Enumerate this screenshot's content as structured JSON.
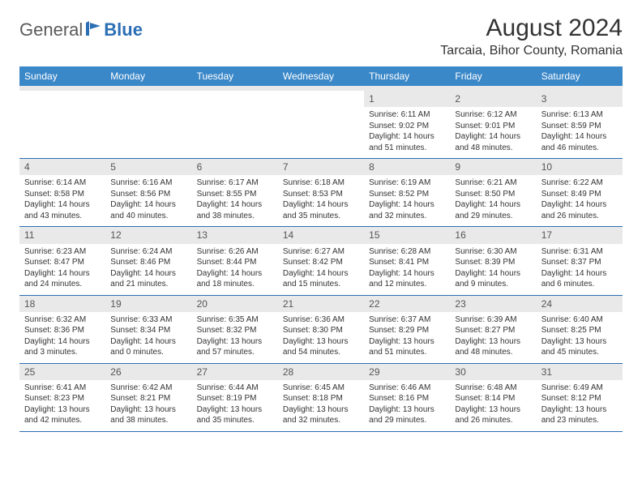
{
  "header": {
    "logo_general": "General",
    "logo_blue": "Blue",
    "month_title": "August 2024",
    "location": "Tarcaia, Bihor County, Romania"
  },
  "colors": {
    "header_bg": "#3b88c9",
    "header_text": "#ffffff",
    "daynum_bg": "#e9e9e9",
    "border": "#2c6fb5",
    "logo_gray": "#5a5a5a",
    "logo_blue": "#2c6fb5",
    "body_text": "#333333",
    "page_bg": "#ffffff"
  },
  "weekdays": [
    "Sunday",
    "Monday",
    "Tuesday",
    "Wednesday",
    "Thursday",
    "Friday",
    "Saturday"
  ],
  "weeks": [
    [
      {
        "day": "",
        "sunrise": "",
        "sunset": "",
        "daylight1": "",
        "daylight2": "",
        "empty": true
      },
      {
        "day": "",
        "sunrise": "",
        "sunset": "",
        "daylight1": "",
        "daylight2": "",
        "empty": true
      },
      {
        "day": "",
        "sunrise": "",
        "sunset": "",
        "daylight1": "",
        "daylight2": "",
        "empty": true
      },
      {
        "day": "",
        "sunrise": "",
        "sunset": "",
        "daylight1": "",
        "daylight2": "",
        "empty": true
      },
      {
        "day": "1",
        "sunrise": "Sunrise: 6:11 AM",
        "sunset": "Sunset: 9:02 PM",
        "daylight1": "Daylight: 14 hours",
        "daylight2": "and 51 minutes."
      },
      {
        "day": "2",
        "sunrise": "Sunrise: 6:12 AM",
        "sunset": "Sunset: 9:01 PM",
        "daylight1": "Daylight: 14 hours",
        "daylight2": "and 48 minutes."
      },
      {
        "day": "3",
        "sunrise": "Sunrise: 6:13 AM",
        "sunset": "Sunset: 8:59 PM",
        "daylight1": "Daylight: 14 hours",
        "daylight2": "and 46 minutes."
      }
    ],
    [
      {
        "day": "4",
        "sunrise": "Sunrise: 6:14 AM",
        "sunset": "Sunset: 8:58 PM",
        "daylight1": "Daylight: 14 hours",
        "daylight2": "and 43 minutes."
      },
      {
        "day": "5",
        "sunrise": "Sunrise: 6:16 AM",
        "sunset": "Sunset: 8:56 PM",
        "daylight1": "Daylight: 14 hours",
        "daylight2": "and 40 minutes."
      },
      {
        "day": "6",
        "sunrise": "Sunrise: 6:17 AM",
        "sunset": "Sunset: 8:55 PM",
        "daylight1": "Daylight: 14 hours",
        "daylight2": "and 38 minutes."
      },
      {
        "day": "7",
        "sunrise": "Sunrise: 6:18 AM",
        "sunset": "Sunset: 8:53 PM",
        "daylight1": "Daylight: 14 hours",
        "daylight2": "and 35 minutes."
      },
      {
        "day": "8",
        "sunrise": "Sunrise: 6:19 AM",
        "sunset": "Sunset: 8:52 PM",
        "daylight1": "Daylight: 14 hours",
        "daylight2": "and 32 minutes."
      },
      {
        "day": "9",
        "sunrise": "Sunrise: 6:21 AM",
        "sunset": "Sunset: 8:50 PM",
        "daylight1": "Daylight: 14 hours",
        "daylight2": "and 29 minutes."
      },
      {
        "day": "10",
        "sunrise": "Sunrise: 6:22 AM",
        "sunset": "Sunset: 8:49 PM",
        "daylight1": "Daylight: 14 hours",
        "daylight2": "and 26 minutes."
      }
    ],
    [
      {
        "day": "11",
        "sunrise": "Sunrise: 6:23 AM",
        "sunset": "Sunset: 8:47 PM",
        "daylight1": "Daylight: 14 hours",
        "daylight2": "and 24 minutes."
      },
      {
        "day": "12",
        "sunrise": "Sunrise: 6:24 AM",
        "sunset": "Sunset: 8:46 PM",
        "daylight1": "Daylight: 14 hours",
        "daylight2": "and 21 minutes."
      },
      {
        "day": "13",
        "sunrise": "Sunrise: 6:26 AM",
        "sunset": "Sunset: 8:44 PM",
        "daylight1": "Daylight: 14 hours",
        "daylight2": "and 18 minutes."
      },
      {
        "day": "14",
        "sunrise": "Sunrise: 6:27 AM",
        "sunset": "Sunset: 8:42 PM",
        "daylight1": "Daylight: 14 hours",
        "daylight2": "and 15 minutes."
      },
      {
        "day": "15",
        "sunrise": "Sunrise: 6:28 AM",
        "sunset": "Sunset: 8:41 PM",
        "daylight1": "Daylight: 14 hours",
        "daylight2": "and 12 minutes."
      },
      {
        "day": "16",
        "sunrise": "Sunrise: 6:30 AM",
        "sunset": "Sunset: 8:39 PM",
        "daylight1": "Daylight: 14 hours",
        "daylight2": "and 9 minutes."
      },
      {
        "day": "17",
        "sunrise": "Sunrise: 6:31 AM",
        "sunset": "Sunset: 8:37 PM",
        "daylight1": "Daylight: 14 hours",
        "daylight2": "and 6 minutes."
      }
    ],
    [
      {
        "day": "18",
        "sunrise": "Sunrise: 6:32 AM",
        "sunset": "Sunset: 8:36 PM",
        "daylight1": "Daylight: 14 hours",
        "daylight2": "and 3 minutes."
      },
      {
        "day": "19",
        "sunrise": "Sunrise: 6:33 AM",
        "sunset": "Sunset: 8:34 PM",
        "daylight1": "Daylight: 14 hours",
        "daylight2": "and 0 minutes."
      },
      {
        "day": "20",
        "sunrise": "Sunrise: 6:35 AM",
        "sunset": "Sunset: 8:32 PM",
        "daylight1": "Daylight: 13 hours",
        "daylight2": "and 57 minutes."
      },
      {
        "day": "21",
        "sunrise": "Sunrise: 6:36 AM",
        "sunset": "Sunset: 8:30 PM",
        "daylight1": "Daylight: 13 hours",
        "daylight2": "and 54 minutes."
      },
      {
        "day": "22",
        "sunrise": "Sunrise: 6:37 AM",
        "sunset": "Sunset: 8:29 PM",
        "daylight1": "Daylight: 13 hours",
        "daylight2": "and 51 minutes."
      },
      {
        "day": "23",
        "sunrise": "Sunrise: 6:39 AM",
        "sunset": "Sunset: 8:27 PM",
        "daylight1": "Daylight: 13 hours",
        "daylight2": "and 48 minutes."
      },
      {
        "day": "24",
        "sunrise": "Sunrise: 6:40 AM",
        "sunset": "Sunset: 8:25 PM",
        "daylight1": "Daylight: 13 hours",
        "daylight2": "and 45 minutes."
      }
    ],
    [
      {
        "day": "25",
        "sunrise": "Sunrise: 6:41 AM",
        "sunset": "Sunset: 8:23 PM",
        "daylight1": "Daylight: 13 hours",
        "daylight2": "and 42 minutes."
      },
      {
        "day": "26",
        "sunrise": "Sunrise: 6:42 AM",
        "sunset": "Sunset: 8:21 PM",
        "daylight1": "Daylight: 13 hours",
        "daylight2": "and 38 minutes."
      },
      {
        "day": "27",
        "sunrise": "Sunrise: 6:44 AM",
        "sunset": "Sunset: 8:19 PM",
        "daylight1": "Daylight: 13 hours",
        "daylight2": "and 35 minutes."
      },
      {
        "day": "28",
        "sunrise": "Sunrise: 6:45 AM",
        "sunset": "Sunset: 8:18 PM",
        "daylight1": "Daylight: 13 hours",
        "daylight2": "and 32 minutes."
      },
      {
        "day": "29",
        "sunrise": "Sunrise: 6:46 AM",
        "sunset": "Sunset: 8:16 PM",
        "daylight1": "Daylight: 13 hours",
        "daylight2": "and 29 minutes."
      },
      {
        "day": "30",
        "sunrise": "Sunrise: 6:48 AM",
        "sunset": "Sunset: 8:14 PM",
        "daylight1": "Daylight: 13 hours",
        "daylight2": "and 26 minutes."
      },
      {
        "day": "31",
        "sunrise": "Sunrise: 6:49 AM",
        "sunset": "Sunset: 8:12 PM",
        "daylight1": "Daylight: 13 hours",
        "daylight2": "and 23 minutes."
      }
    ]
  ]
}
